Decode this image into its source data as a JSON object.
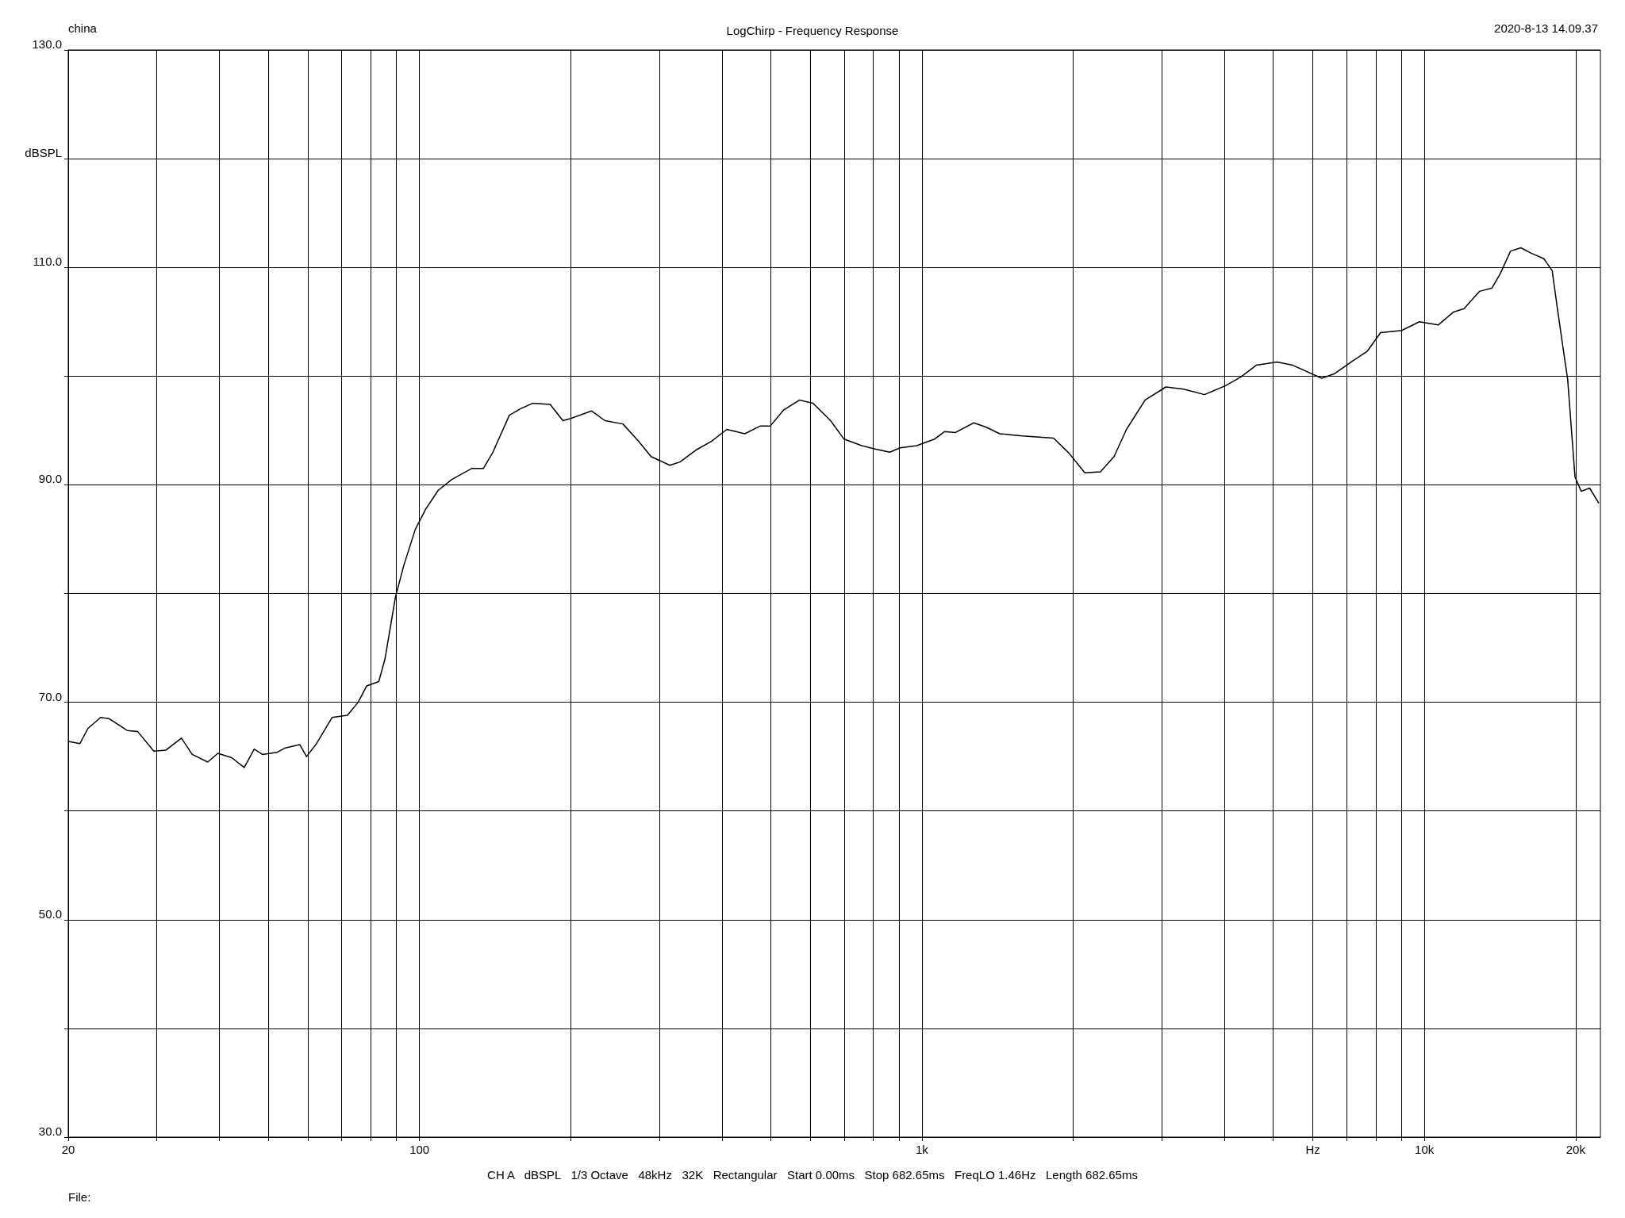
{
  "chart_data": {
    "type": "line",
    "title": "LogChirp - Frequency Response",
    "ylabel": null,
    "annotations": [
      "china",
      "2020-8-13 14.09.37",
      "CH A   dBSPL   1/3 Octave   48kHz   32K   Rectangular   Start 0.00ms   Stop 682.65ms   FreqLO 1.46Hz   Length 682.65ms",
      "File:"
    ],
    "x": [
      20,
      21.1,
      21.9,
      23.2,
      24.1,
      26.2,
      27.5,
      29.6,
      31.3,
      33.6,
      35.3,
      37.9,
      39.7,
      42.3,
      44.8,
      46.9,
      48.7,
      52.1,
      54.1,
      57.8,
      59.6,
      62.4,
      67,
      71.9,
      75.5,
      78.5,
      83,
      85.4,
      89.6,
      93.1,
      98.1,
      103,
      109,
      116,
      127,
      134,
      140,
      151,
      159,
      168,
      182,
      193,
      200,
      220,
      234,
      254,
      273,
      289,
      315,
      330,
      355,
      381,
      409,
      444,
      476,
      499,
      531,
      571,
      607,
      658,
      700,
      759,
      807,
      863,
      905,
      977,
      1059,
      1110,
      1164,
      1268,
      1343,
      1428,
      1585,
      1828,
      1963,
      2109,
      2266,
      2412,
      2553,
      2781,
      3060,
      3318,
      3650,
      4012,
      4307,
      4627,
      5090,
      5470,
      6245,
      6610,
      7200,
      7700,
      8180,
      9010,
      9770,
      10650,
      11430,
      11990,
      12880,
      13630,
      14150,
      14840,
      15560,
      16320,
      17290,
      17960,
      18370,
      18820,
      19280,
      19940,
      20520,
      21320,
      22240
    ],
    "series": [
      {
        "color": "#000000",
        "values": [
          66.4,
          66.2,
          67.6,
          68.6,
          68.5,
          67.4,
          67.3,
          65.5,
          65.6,
          66.7,
          65.2,
          64.5,
          65.3,
          64.9,
          64.0,
          65.7,
          65.2,
          65.4,
          65.8,
          66.1,
          65.0,
          66.2,
          68.6,
          68.8,
          70.0,
          71.5,
          71.9,
          74.0,
          79.7,
          82.6,
          85.9,
          87.8,
          89.5,
          90.5,
          91.5,
          91.5,
          93.0,
          96.4,
          97.0,
          97.5,
          97.4,
          95.9,
          96.1,
          96.8,
          95.9,
          95.6,
          94.0,
          92.6,
          91.8,
          92.1,
          93.2,
          94.0,
          95.1,
          94.7,
          95.4,
          95.4,
          96.9,
          97.8,
          97.5,
          95.9,
          94.2,
          93.6,
          93.3,
          93.0,
          93.4,
          93.6,
          94.2,
          94.9,
          94.8,
          95.7,
          95.3,
          94.7,
          94.5,
          94.3,
          92.9,
          91.1,
          91.2,
          92.6,
          95.1,
          97.8,
          99.0,
          98.8,
          98.3,
          99.1,
          99.9,
          101.0,
          101.3,
          101.0,
          99.8,
          100.2,
          101.4,
          102.3,
          104.0,
          104.2,
          105.0,
          104.7,
          105.9,
          106.2,
          107.8,
          108.1,
          109.4,
          111.5,
          111.8,
          111.3,
          110.8,
          109.7,
          106.4,
          103.0,
          99.7,
          90.7,
          89.4,
          89.7,
          88.3
        ]
      }
    ],
    "log": "x",
    "xlim": [
      20,
      22400
    ],
    "ylim": [
      30,
      130
    ],
    "xticks": [
      {
        "value": 20,
        "label": "20"
      },
      {
        "value": 30,
        "label": null
      },
      {
        "value": 40,
        "label": null
      },
      {
        "value": 50,
        "label": null
      },
      {
        "value": 60,
        "label": null
      },
      {
        "value": 70,
        "label": null
      },
      {
        "value": 80,
        "label": null
      },
      {
        "value": 90,
        "label": null
      },
      {
        "value": 100,
        "label": "100"
      },
      {
        "value": 200,
        "label": null
      },
      {
        "value": 300,
        "label": null
      },
      {
        "value": 400,
        "label": null
      },
      {
        "value": 500,
        "label": null
      },
      {
        "value": 600,
        "label": null
      },
      {
        "value": 700,
        "label": null
      },
      {
        "value": 800,
        "label": null
      },
      {
        "value": 900,
        "label": null
      },
      {
        "value": 1000,
        "label": "1k"
      },
      {
        "value": 2000,
        "label": null
      },
      {
        "value": 3000,
        "label": null
      },
      {
        "value": 4000,
        "label": null
      },
      {
        "value": 5000,
        "label": null
      },
      {
        "value": 6000,
        "label": "Hz"
      },
      {
        "value": 7000,
        "label": null
      },
      {
        "value": 8000,
        "label": null
      },
      {
        "value": 9000,
        "label": null
      },
      {
        "value": 10000,
        "label": "10k"
      },
      {
        "value": 20000,
        "label": "20k"
      }
    ],
    "yticks": [
      {
        "value": 30,
        "label": "30.0"
      },
      {
        "value": 40,
        "label": null
      },
      {
        "value": 50,
        "label": "50.0"
      },
      {
        "value": 60,
        "label": null
      },
      {
        "value": 70,
        "label": "70.0"
      },
      {
        "value": 80,
        "label": null
      },
      {
        "value": 90,
        "label": "90.0"
      },
      {
        "value": 100,
        "label": null
      },
      {
        "value": 110,
        "label": "110.0"
      },
      {
        "value": 120,
        "label": "dBSPL"
      },
      {
        "value": 130,
        "label": "130.0"
      }
    ],
    "grid": true,
    "marker": "none",
    "line_style": "solid"
  }
}
